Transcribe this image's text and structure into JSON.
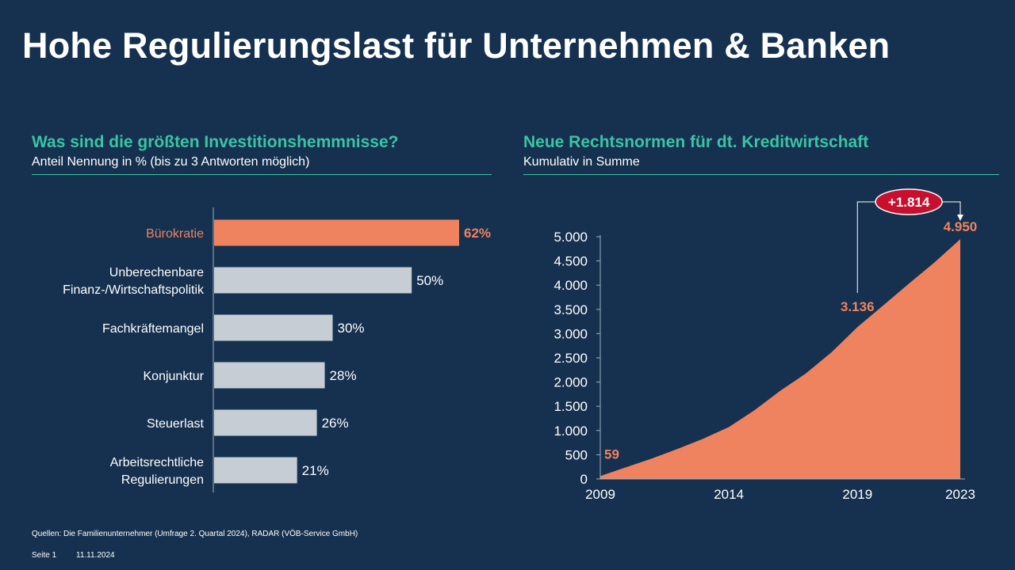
{
  "slide": {
    "title": "Hohe Regulierungslast für Unternehmen & Banken"
  },
  "left_panel": {
    "title": "Was sind die größten Investitionshemmnisse?",
    "subtitle": "Anteil Nennung in % (bis zu 3 Antworten möglich)"
  },
  "right_panel": {
    "title": "Neue Rechtsnormen für dt. Kreditwirtschaft",
    "subtitle": "Kumulativ in Summe"
  },
  "footer": {
    "source": "Quellen: Die Familienunternehmer (Umfrage 2. Quartal 2024), RADAR (VÖB-Service GmbH)",
    "page": "Seite 1",
    "date": "11.11.2024"
  },
  "colors": {
    "background": "#15314f",
    "accent_teal": "#3cc3a4",
    "highlight_orange": "#ef8360",
    "bar_grey": "#c7cdd4",
    "badge_red": "#c8102e"
  },
  "chart_data": [
    {
      "type": "bar",
      "orientation": "horizontal",
      "categories": [
        [
          "Bürokratie"
        ],
        [
          "Unberechenbare",
          "Finanz-/Wirtschaftspolitik"
        ],
        [
          "Fachkräftemangel"
        ],
        [
          "Konjunktur"
        ],
        [
          "Steuerlast"
        ],
        [
          "Arbeitsrechtliche",
          "Regulierungen"
        ]
      ],
      "values": [
        62,
        50,
        30,
        28,
        26,
        21
      ],
      "value_labels": [
        "62%",
        "50%",
        "30%",
        "28%",
        "26%",
        "21%"
      ],
      "highlight_index": 0,
      "xlim": [
        0,
        100
      ]
    },
    {
      "type": "area",
      "x": [
        2009,
        2010,
        2011,
        2012,
        2013,
        2014,
        2015,
        2016,
        2017,
        2018,
        2019,
        2020,
        2021,
        2022,
        2023
      ],
      "values": [
        59,
        240,
        420,
        620,
        830,
        1070,
        1420,
        1820,
        2180,
        2620,
        3136,
        3580,
        4030,
        4470,
        4950
      ],
      "ylim": [
        0,
        5000
      ],
      "yticks": [
        0,
        500,
        1000,
        1500,
        2000,
        2500,
        3000,
        3500,
        4000,
        4500,
        5000
      ],
      "ytick_labels": [
        "0",
        "500",
        "1.000",
        "1.500",
        "2.000",
        "2.500",
        "3.000",
        "3.500",
        "4.000",
        "4.500",
        "5.000"
      ],
      "xticks": [
        2009,
        2014,
        2019,
        2023
      ],
      "xtick_labels": [
        "2009",
        "2014",
        "2019",
        "2023"
      ],
      "annotations": [
        {
          "x": 2009,
          "y": 59,
          "label": "59"
        },
        {
          "x": 2019,
          "y": 3136,
          "label": "3.136"
        },
        {
          "x": 2023,
          "y": 4950,
          "label": "4.950"
        }
      ],
      "difference_badge": {
        "from_x": 2019,
        "to_x": 2023,
        "label": "+1.814"
      }
    }
  ]
}
